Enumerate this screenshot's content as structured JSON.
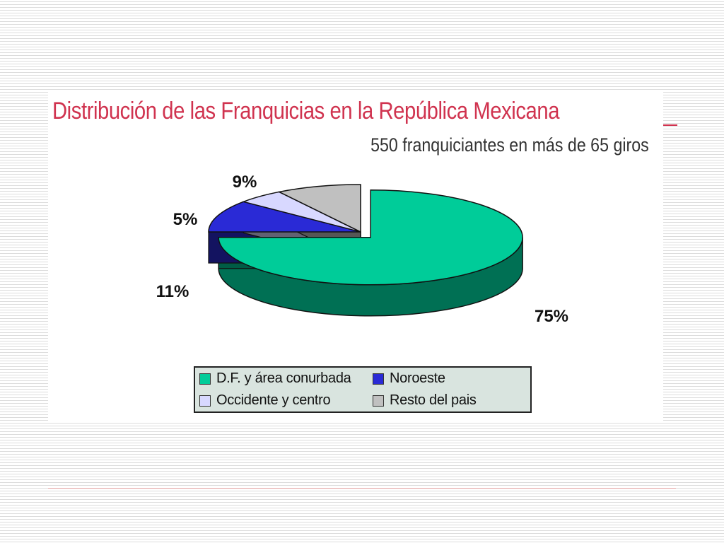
{
  "slide": {
    "accent_color": "#d0334f"
  },
  "chart_data": {
    "type": "pie",
    "style": "3d",
    "title": "Distribución de las Franquicias en la República Mexicana",
    "subtitle": "550 franquiciantes en más de 65 giros",
    "legend_position": "bottom",
    "slices": [
      {
        "label": "D.F. y área conurbada",
        "value": 75,
        "display": "75%",
        "color": "#00cc99",
        "exploded": true
      },
      {
        "label": "Noroeste",
        "value": 11,
        "display": "11%",
        "color": "#2a2ad6"
      },
      {
        "label": "Occidente y centro",
        "value": 5,
        "display": "5%",
        "color": "#d8d8ff"
      },
      {
        "label": "Resto del país",
        "value": 9,
        "display": "9%",
        "color": "#c0c0c0"
      }
    ],
    "legend": [
      {
        "label": "D.F. y área conurbada",
        "color": "#00cc99"
      },
      {
        "label": "Noroeste",
        "color": "#2a2ad6"
      },
      {
        "label": "Occidente y centro",
        "color": "#d8d8ff"
      },
      {
        "label": "Resto del pais",
        "color": "#c0c0c0"
      }
    ]
  }
}
